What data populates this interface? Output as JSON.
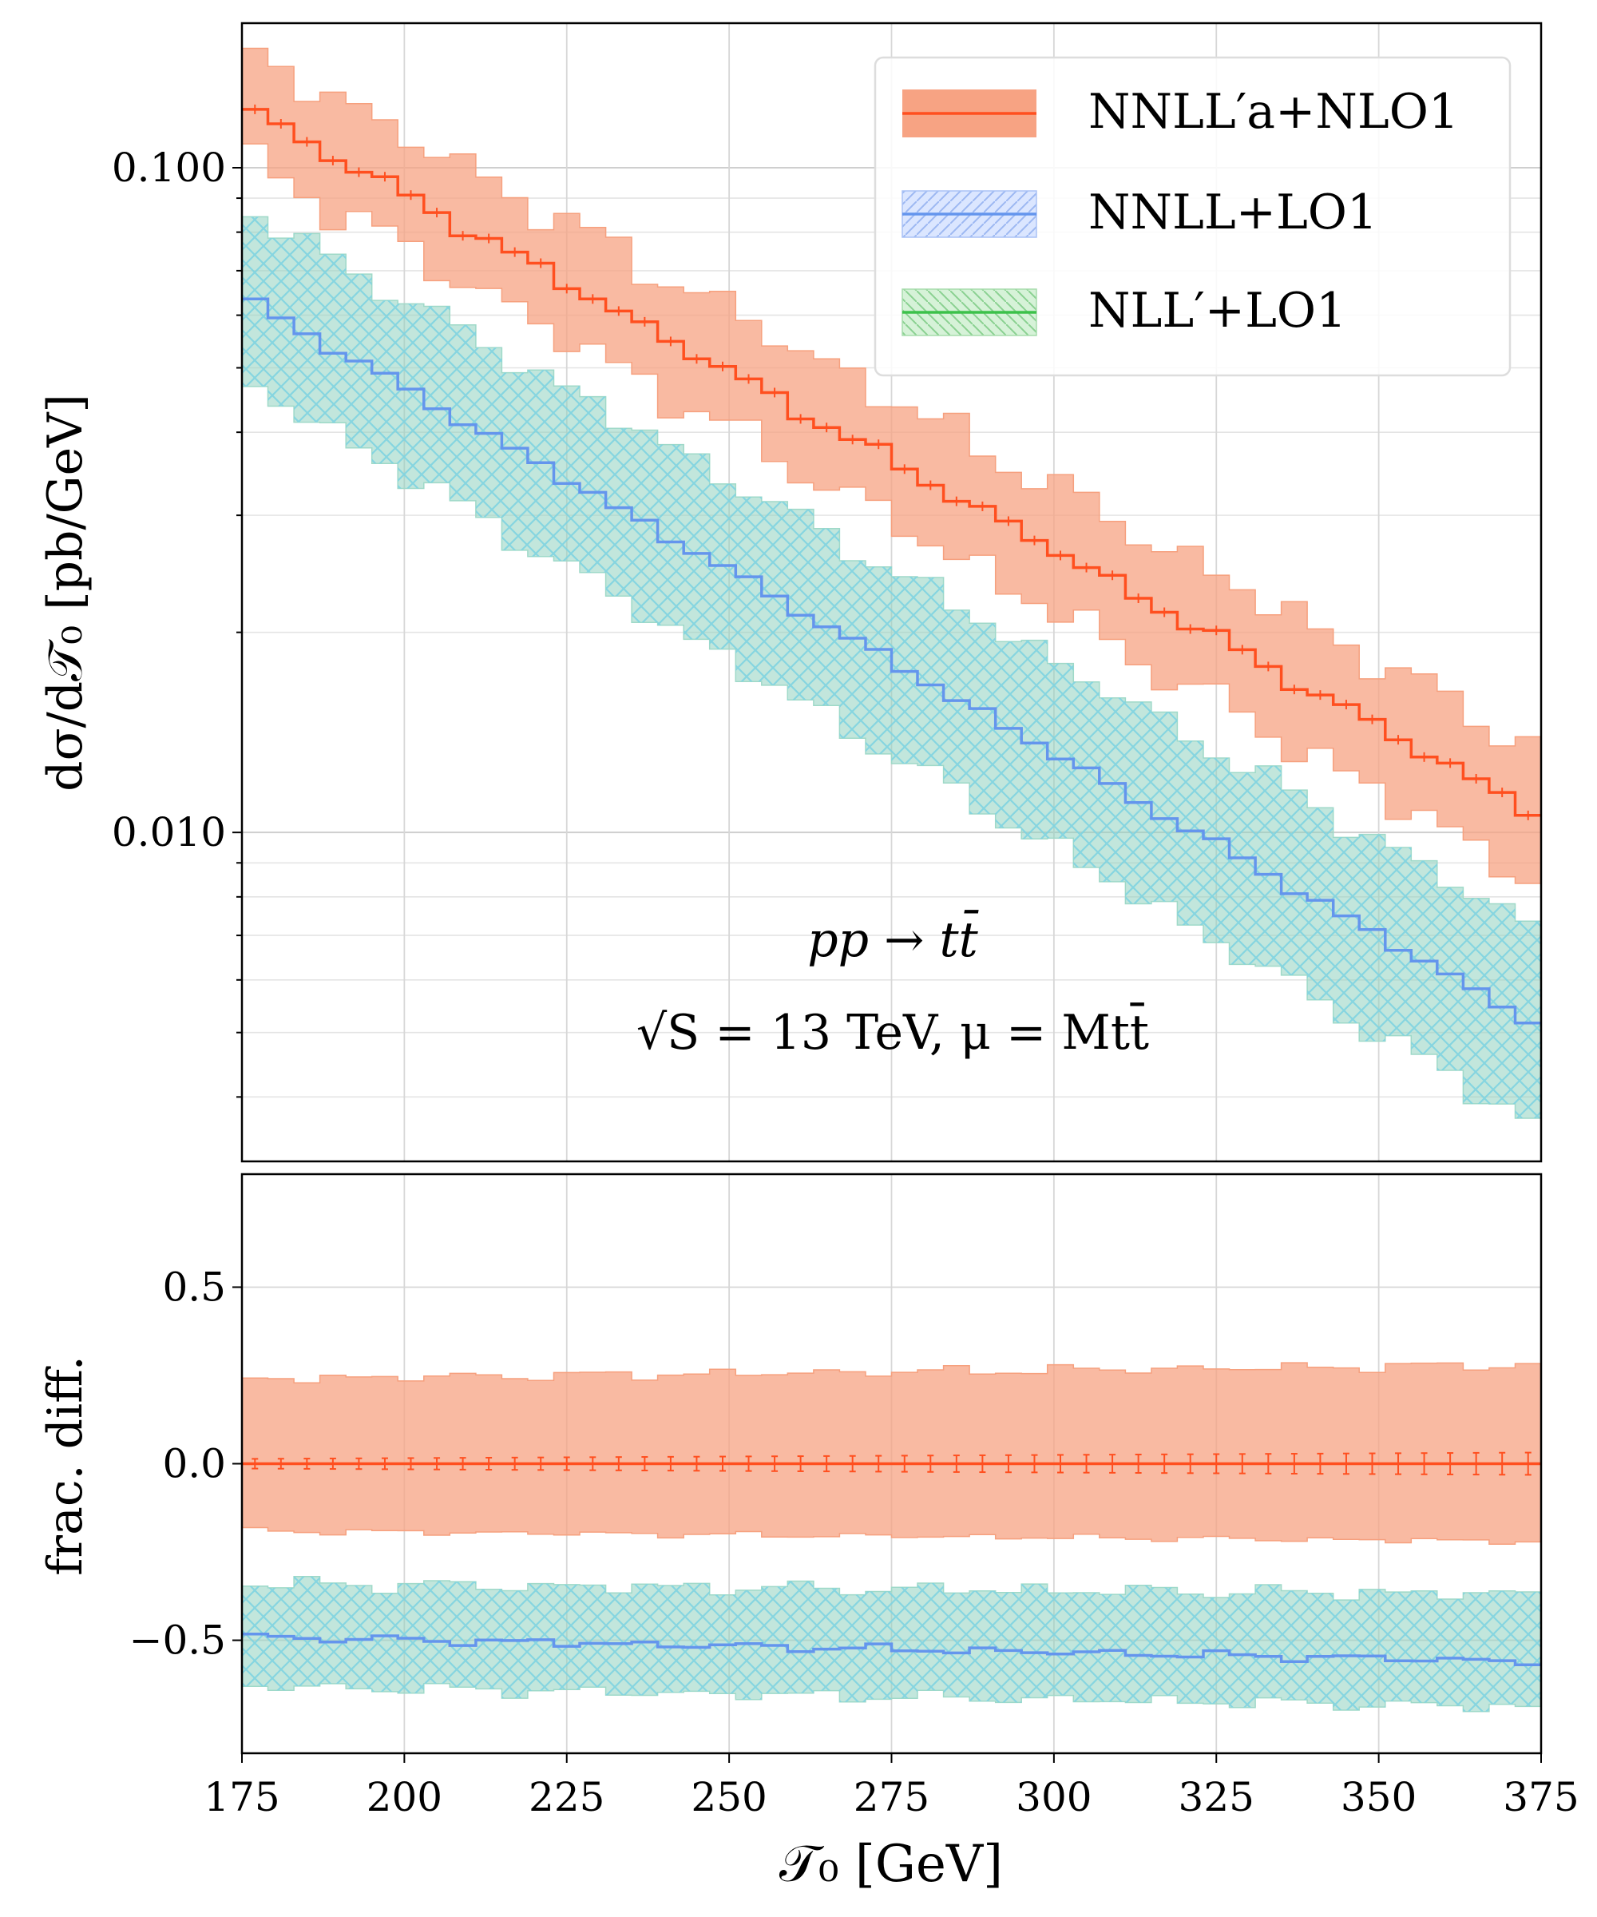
{
  "chart_data": {
    "type": "line",
    "x_binning": {
      "start": 175,
      "end": 375,
      "bin_width": 4
    },
    "xlim": [
      175,
      375
    ],
    "xticks": [
      175,
      200,
      225,
      250,
      275,
      300,
      325,
      350,
      375
    ],
    "xtick_labels": [
      "175",
      "200",
      "225",
      "250",
      "275",
      "300",
      "325",
      "350",
      "375"
    ],
    "xlabel": "𝒯₀   [GeV]",
    "grid": true,
    "top_panel": {
      "scale": "log",
      "ylim": [
        0.0032,
        0.165
      ],
      "yticks": [
        0.01,
        0.1
      ],
      "ytick_labels": [
        "0.010",
        "0.100"
      ],
      "ylabel": "dσ/d𝒯₀   [pb/GeV]",
      "annotation": {
        "line1": "pp → tt̄",
        "line2": "√S = 13 TeV, μ = Mtt̄"
      },
      "series": [
        {
          "name": "NNLL′a+NLO1",
          "color": "#ff4f1f",
          "band_color": "#f7a383",
          "central_start": 0.124,
          "central_end": 0.0106,
          "band_low_start": 0.104,
          "band_low_end": 0.0084,
          "band_high_start": 0.152,
          "band_high_end": 0.0133
        },
        {
          "name": "NNLL+LO1",
          "color": "#6495ed",
          "central_start": 0.064,
          "central_end": 0.0051
        },
        {
          "name": "NLL′+LO1",
          "color": "#3cc14a",
          "band_color": "#8fd2bf",
          "central_start": 0.064,
          "central_end": 0.0051,
          "band_low_start": 0.048,
          "band_low_end": 0.0036,
          "band_high_start": 0.087,
          "band_high_end": 0.0071
        }
      ]
    },
    "bottom_panel": {
      "scale": "linear",
      "ylim": [
        -0.82,
        0.82
      ],
      "yticks": [
        -0.5,
        0.0,
        0.5
      ],
      "ytick_labels": [
        "−0.5",
        "0.0",
        "0.5"
      ],
      "ylabel": "frac. diff.",
      "series": [
        {
          "name": "NNLL′a+NLO1",
          "central": 0.0,
          "band_low_start": -0.19,
          "band_low_end": -0.22,
          "band_high_start": 0.24,
          "band_high_end": 0.28
        },
        {
          "name": "NNLL+LO1",
          "central_start": -0.49,
          "central_end": -0.56
        },
        {
          "name": "NLL′+LO1",
          "band_low_start": -0.63,
          "band_low_end": -0.69,
          "band_high_start": -0.34,
          "band_high_end": -0.37
        }
      ]
    },
    "legend": {
      "position": "top-right",
      "entries": [
        {
          "label": "NNLL′a+NLO1",
          "line": "#ff4f1f",
          "fill": "#f7a383",
          "hatch": false
        },
        {
          "label": "NNLL+LO1",
          "line": "#6495ed",
          "fill": "#dbe6ff",
          "hatch": true
        },
        {
          "label": "NLL′+LO1",
          "line": "#3cc14a",
          "fill": "#d6f2d8",
          "hatch": true
        }
      ]
    }
  }
}
